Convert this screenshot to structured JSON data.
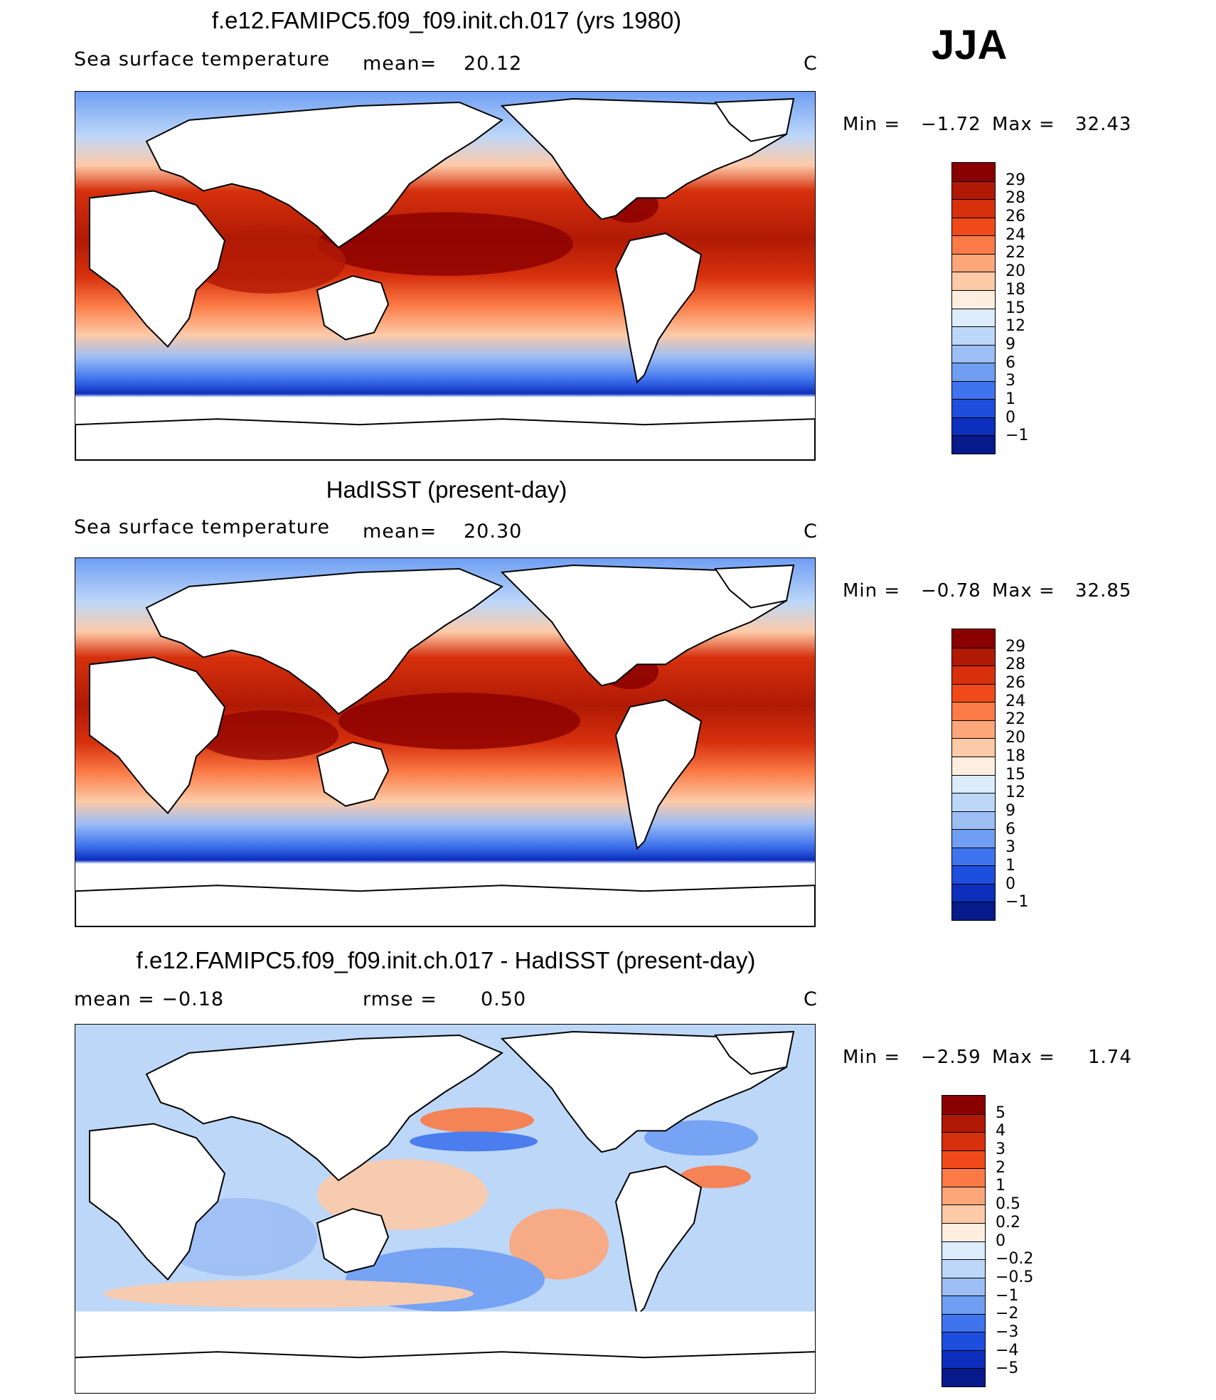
{
  "season": "JJA",
  "panels": [
    {
      "title": "f.e12.FAMIPC5.f09_f09.init.ch.017 (yrs 1980)",
      "left_label": "Sea surface temperature",
      "mid_label": "mean=",
      "mid_value": "20.12",
      "units": "C",
      "min_label": "Min =",
      "min_value": "−1.72",
      "max_label": "Max =",
      "max_value": "32.43",
      "colorbar": {
        "labels": [
          "29",
          "28",
          "26",
          "24",
          "22",
          "20",
          "18",
          "15",
          "12",
          "9",
          "6",
          "3",
          "1",
          "0",
          "−1"
        ],
        "colors": [
          "#8a0000",
          "#b01a05",
          "#d6300c",
          "#f04a1a",
          "#fb7a45",
          "#fda67a",
          "#fdcaa8",
          "#feeedf",
          "#dcecfb",
          "#bdd7f8",
          "#9dbef5",
          "#6f9ef3",
          "#3f74ee",
          "#1e4ede",
          "#0c2fbd",
          "#061a8c"
        ]
      }
    },
    {
      "title": "HadISST (present-day)",
      "left_label": "Sea surface temperature",
      "mid_label": "mean=",
      "mid_value": "20.30",
      "units": "C",
      "min_label": "Min =",
      "min_value": "−0.78",
      "max_label": "Max =",
      "max_value": "32.85",
      "colorbar": {
        "labels": [
          "29",
          "28",
          "26",
          "24",
          "22",
          "20",
          "18",
          "15",
          "12",
          "9",
          "6",
          "3",
          "1",
          "0",
          "−1"
        ],
        "colors": [
          "#8a0000",
          "#b01a05",
          "#d6300c",
          "#f04a1a",
          "#fb7a45",
          "#fda67a",
          "#fdcaa8",
          "#feeedf",
          "#dcecfb",
          "#bdd7f8",
          "#9dbef5",
          "#6f9ef3",
          "#3f74ee",
          "#1e4ede",
          "#0c2fbd",
          "#061a8c"
        ]
      }
    },
    {
      "title": "f.e12.FAMIPC5.f09_f09.init.ch.017 - HadISST (present-day)",
      "left_label": "mean =    −0.18",
      "mid_label": "rmse =",
      "mid_value": "0.50",
      "units": "C",
      "min_label": "Min =",
      "min_value": "−2.59",
      "max_label": "Max =",
      "max_value": "1.74",
      "colorbar": {
        "labels": [
          "5",
          "4",
          "3",
          "2",
          "1",
          "0.5",
          "0.2",
          "0",
          "−0.2",
          "−0.5",
          "−1",
          "−2",
          "−3",
          "−4",
          "−5"
        ],
        "colors": [
          "#8a0000",
          "#b01a05",
          "#d6300c",
          "#f04a1a",
          "#fb7a45",
          "#fda67a",
          "#fdcaa8",
          "#feeedf",
          "#dcecfb",
          "#bdd7f8",
          "#9dbef5",
          "#6f9ef3",
          "#3f74ee",
          "#1e4ede",
          "#0c2fbd",
          "#061a8c"
        ]
      }
    }
  ]
}
